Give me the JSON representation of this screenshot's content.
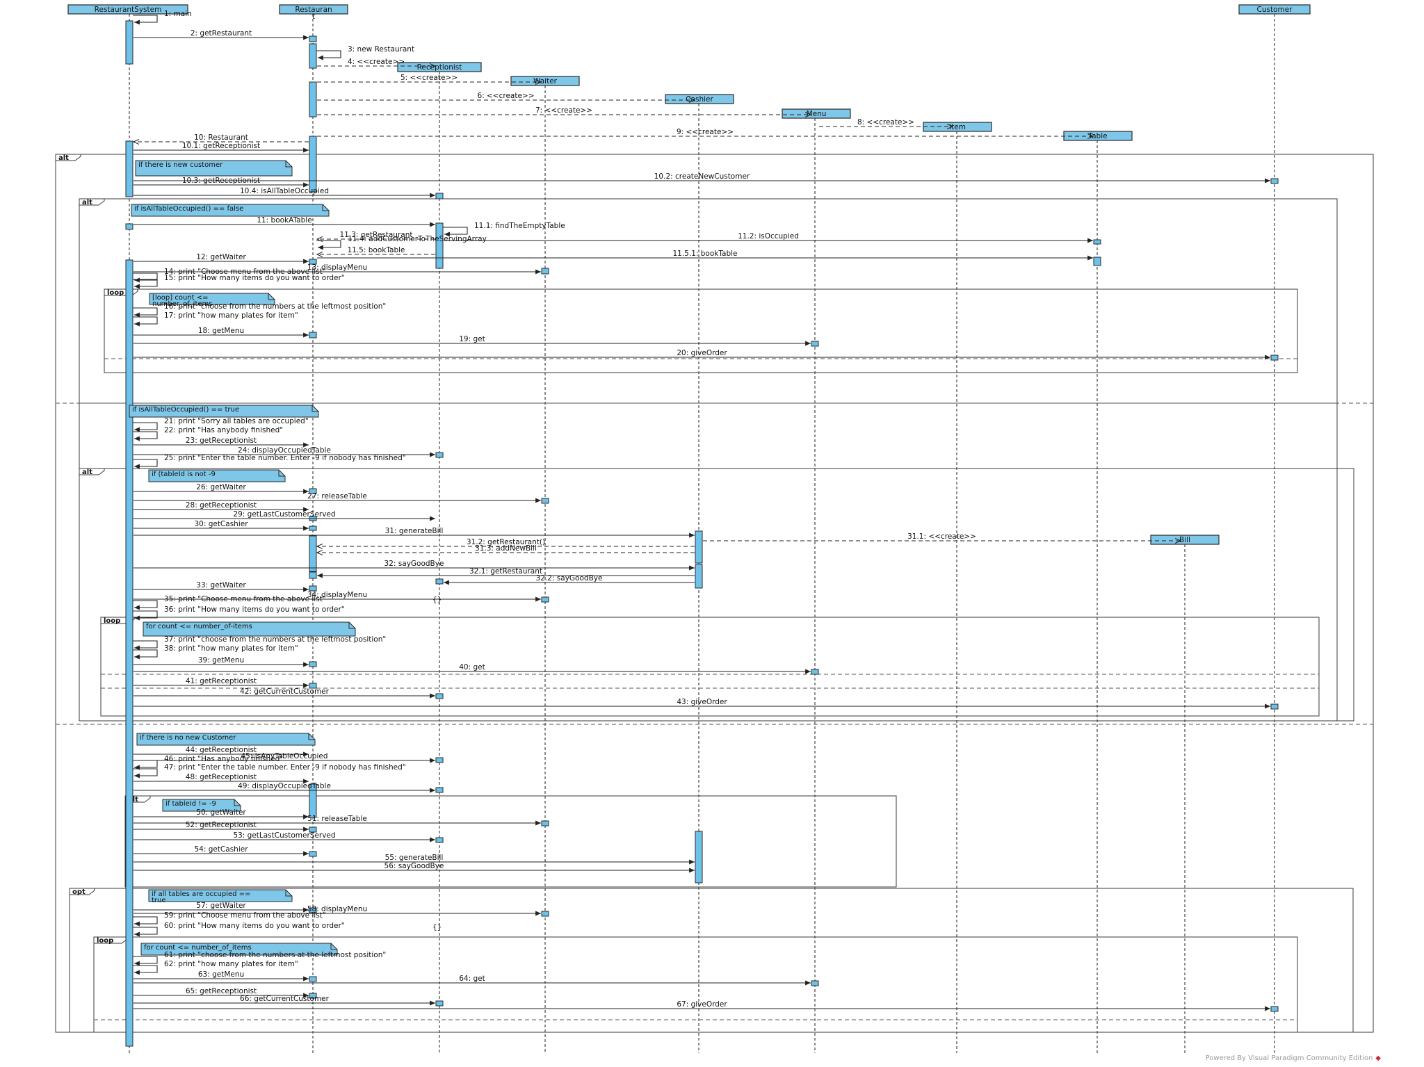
{
  "lifelines": [
    {
      "id": "rs",
      "name": "RestaurantSystem"
    },
    {
      "id": "rest",
      "name": "Restauran\nt"
    },
    {
      "id": "rec",
      "name": "Receptionist"
    },
    {
      "id": "waiter",
      "name": "Waiter"
    },
    {
      "id": "cashier",
      "name": "Cashier"
    },
    {
      "id": "menu",
      "name": "Menu"
    },
    {
      "id": "item",
      "name": "Item"
    },
    {
      "id": "table",
      "name": "Table"
    },
    {
      "id": "bill",
      "name": "Bill"
    },
    {
      "id": "cust",
      "name": "Customer"
    }
  ],
  "fragments": [
    {
      "tag": "alt"
    },
    {
      "tag": "alt"
    },
    {
      "tag": "loop"
    },
    {
      "tag": "alt"
    },
    {
      "tag": "loop"
    },
    {
      "tag": "alt"
    },
    {
      "tag": "opt"
    },
    {
      "tag": "loop"
    }
  ],
  "guards": [
    "if there is new customer",
    "if isAllTableOccupied() == false",
    "[loop] count <= number_of_items",
    "if isAllTableOccupied() == true",
    "if (tableId is not -9",
    "for count <= number_of-items",
    "if there is no new Customer",
    "if tableId != -9",
    "if all tables are occupied == true",
    "for count <= number_of_items"
  ],
  "messages": [
    "1: main",
    "2: getRestaurant",
    "3: new Restaurant",
    "4: <<create>>",
    "5: <<create>>",
    "6: <<create>>",
    "7: <<create>>",
    "8: <<create>>",
    "9: <<create>>",
    "10: Restaurant",
    "10.1: getReceptionist",
    "10.2: createNewCustomer",
    "10.3: getReceptionist",
    "10.4: isAllTableOccupied",
    "11: bookATable",
    "11.1: findTheEmptyTable",
    "11.2: isOccupied",
    "11.3: getRestaurant",
    "11.4: addCustomerToTheServingArray",
    "11.5: bookTable",
    "11.5.1: bookTable",
    "12: getWaiter",
    "13: displayMenu",
    "14: print \"Choose menu from the above list\"",
    "15: print \"How many items do you want to order\"",
    "16: print \"choose from the numbers at the leftmost position\"",
    "17: print \"how many plates for item\"",
    "18: getMenu",
    "19: get",
    "20: giveOrder",
    "21: print \"Sorry all tables are occupied\"",
    "22: print \"Has anybody finished\"",
    "23: getReceptionist",
    "24: displayOccupiedTable",
    "25: print \"Enter the table number. Enter -9 if nobody has finished\"",
    "26: getWaiter",
    "27: releaseTable",
    "28: getReceptionist",
    "29: getLastCustomerServed",
    "30: getCashier",
    "31: generateBill",
    "31.1: <<create>>",
    "31.2: getRestaurant()",
    "31.3: addNewBill",
    "32: sayGoodBye",
    "32.1: getRestaurant",
    "32.2: sayGoodBye",
    "33: getWaiter",
    "34: displayMenu",
    "35: print \"Choose menu from the above list\"",
    "36: print \"How many items do you want to order\"",
    "37: print \"choose from the numbers at the leftmost position\"",
    "38: print \"how many plates for item\"",
    "39: getMenu",
    "40: get",
    "41: getReceptionist",
    "42: getCurrentCustomer",
    "43: giveOrder",
    "44: getReceptionist",
    "45: isAnyTableOccupied",
    "46: print \"Has anybody finished\"",
    "47: print \"Enter the table number. Enter -9 if nobody has finished\"",
    "48: getReceptionist",
    "49: displayOccupiedTable",
    "50: getWaiter",
    "51: releaseTable",
    "52: getReceptionist",
    "53: getLastCustomerServed",
    "54: getCashier",
    "55: generateBill",
    "56: sayGoodBye",
    "57: getWaiter",
    "58: displayMenu",
    "59: print \"Choose menu from the above list\"",
    "60: print \"How many items do you want to order\"",
    "61: print \"choose from the numbers at the leftmost position\"",
    "62: print \"how many plates for item\"",
    "63: getMenu",
    "64: get",
    "65: getReceptionist",
    "66: getCurrentCustomer",
    "67: giveOrder"
  ],
  "extra_marks": [
    "{}",
    "{}"
  ],
  "footer": {
    "watermark": "Powered By Visual Paradigm Community Edition"
  },
  "colors": {
    "box_fill": "#7fc7e8",
    "box_stroke": "#2a2a2a",
    "line": "#444444",
    "note_fill": "#7fc7e8",
    "activation": "#6ec1e8"
  }
}
